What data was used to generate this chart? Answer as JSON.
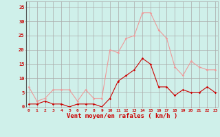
{
  "hours": [
    0,
    1,
    2,
    3,
    4,
    5,
    6,
    7,
    8,
    9,
    10,
    11,
    12,
    13,
    14,
    15,
    16,
    17,
    18,
    19,
    20,
    21,
    22,
    23
  ],
  "wind_avg": [
    1,
    1,
    2,
    1,
    1,
    0,
    1,
    1,
    1,
    0,
    3,
    9,
    11,
    13,
    17,
    15,
    7,
    7,
    4,
    6,
    5,
    5,
    7,
    5
  ],
  "wind_gust": [
    7,
    2,
    3,
    6,
    6,
    6,
    2,
    6,
    3,
    3,
    20,
    19,
    24,
    25,
    33,
    33,
    27,
    24,
    14,
    11,
    16,
    14,
    13,
    13
  ],
  "bg_color": "#cff0ea",
  "grid_color": "#aaaaaa",
  "avg_line_color": "#cc0000",
  "gust_line_color": "#ee9999",
  "axis_label_color": "#cc0000",
  "tick_color": "#cc0000",
  "xlabel": "Vent moyen/en rafales ( km/h )",
  "ylim": [
    0,
    37
  ],
  "yticks": [
    0,
    5,
    10,
    15,
    20,
    25,
    30,
    35
  ],
  "xlim": [
    -0.3,
    23.3
  ]
}
